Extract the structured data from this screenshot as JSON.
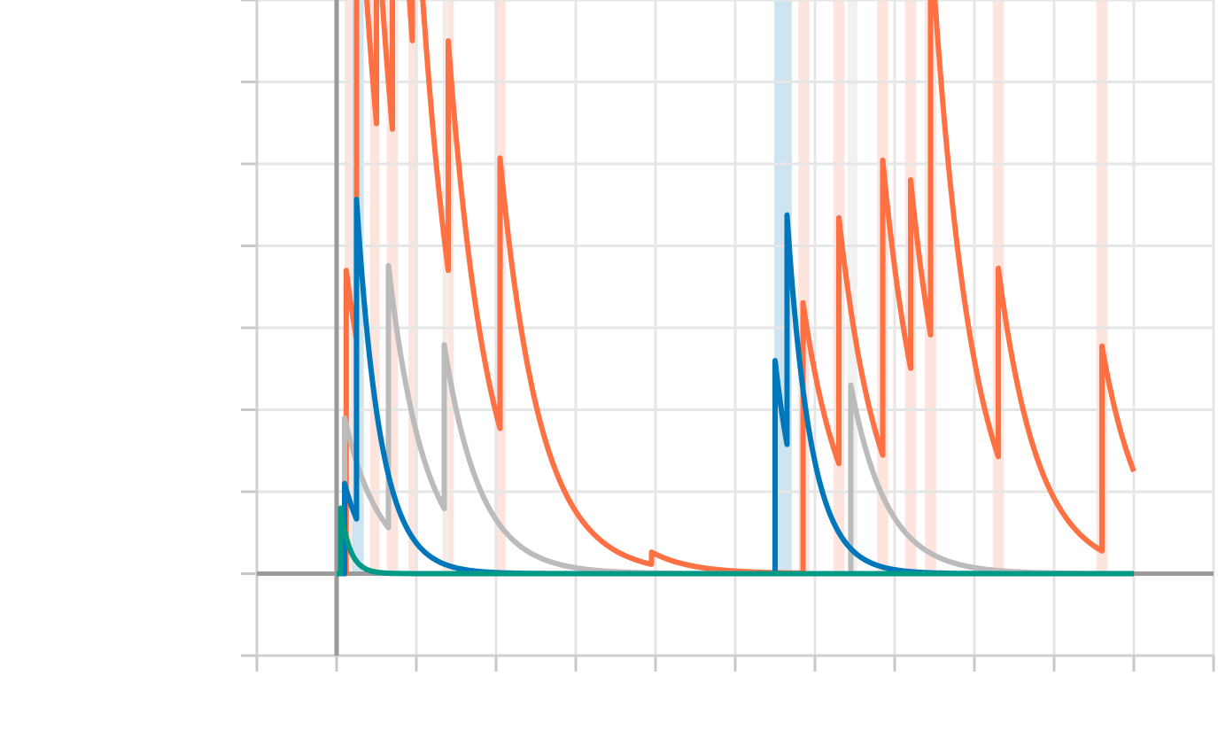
{
  "chart_data": {
    "type": "line",
    "title": "",
    "xlabel": "",
    "ylabel": "",
    "x_ticks": [
      0,
      1,
      2,
      3,
      4,
      5,
      6,
      7,
      8,
      9,
      10,
      11
    ],
    "y_ticks": [
      -1,
      0,
      1,
      2,
      3,
      4,
      5,
      6,
      7
    ],
    "xlim": [
      -1,
      11
    ],
    "ylim": [
      -1,
      7
    ],
    "grid": true,
    "colors": {
      "orange": "#ff7043",
      "orange_band": "#fde0d8",
      "blue": "#0077bb",
      "blue_band": "#c6e0ef",
      "grey": "#bbbbbb",
      "grey_band": "#efefef",
      "teal": "#009988",
      "zero_axis": "#9a9a9a",
      "grid": "#e6e6e6"
    },
    "series": [
      {
        "color": "orange",
        "decay": 0.5,
        "end": 10.0,
        "events": [
          {
            "t": 0.12,
            "a": 3.7
          },
          {
            "t": 0.25,
            "a": 6.2
          },
          {
            "t": 0.5,
            "a": 2.6
          },
          {
            "t": 0.7,
            "a": 5.3
          },
          {
            "t": 0.95,
            "a": 2.6
          },
          {
            "t": 1.4,
            "a": 2.8
          },
          {
            "t": 2.05,
            "a": 3.3
          },
          {
            "t": 3.95,
            "a": 0.15
          },
          {
            "t": 5.85,
            "a": 3.3
          },
          {
            "t": 6.3,
            "a": 3.0
          },
          {
            "t": 6.85,
            "a": 3.6
          },
          {
            "t": 7.2,
            "a": 2.3
          },
          {
            "t": 7.45,
            "a": 4.9
          },
          {
            "t": 8.3,
            "a": 2.3
          },
          {
            "t": 9.6,
            "a": 2.5
          }
        ]
      },
      {
        "color": "grey",
        "decay": 0.45,
        "end": 10.0,
        "events": [
          {
            "t": 0.1,
            "a": 1.9
          },
          {
            "t": 0.65,
            "a": 3.2
          },
          {
            "t": 1.35,
            "a": 2.0
          },
          {
            "t": 6.45,
            "a": 2.3
          }
        ]
      },
      {
        "color": "blue",
        "decay": 0.3,
        "end": 10.0,
        "events": [
          {
            "t": 0.1,
            "a": 1.1
          },
          {
            "t": 0.25,
            "a": 3.9
          },
          {
            "t": 5.5,
            "a": 2.6
          },
          {
            "t": 5.65,
            "a": 2.8
          }
        ]
      },
      {
        "color": "teal",
        "decay": 0.12,
        "end": 10.0,
        "events": [
          {
            "t": 0.05,
            "a": 0.8
          }
        ]
      }
    ],
    "bands": [
      {
        "color": "orange_band",
        "t": 0.16,
        "w": 0.12
      },
      {
        "color": "orange_band",
        "t": 0.48,
        "w": 0.12
      },
      {
        "color": "orange_band",
        "t": 0.7,
        "w": 0.14
      },
      {
        "color": "orange_band",
        "t": 0.96,
        "w": 0.12
      },
      {
        "color": "orange_band",
        "t": 1.4,
        "w": 0.14
      },
      {
        "color": "orange_band",
        "t": 2.05,
        "w": 0.14
      },
      {
        "color": "orange_band",
        "t": 5.86,
        "w": 0.14
      },
      {
        "color": "orange_band",
        "t": 6.3,
        "w": 0.14
      },
      {
        "color": "orange_band",
        "t": 6.85,
        "w": 0.14
      },
      {
        "color": "orange_band",
        "t": 7.2,
        "w": 0.14
      },
      {
        "color": "orange_band",
        "t": 7.45,
        "w": 0.14
      },
      {
        "color": "orange_band",
        "t": 8.3,
        "w": 0.14
      },
      {
        "color": "orange_band",
        "t": 9.6,
        "w": 0.14
      },
      {
        "color": "grey_band",
        "t": 6.47,
        "w": 0.12
      },
      {
        "color": "grey_band",
        "t": 1.38,
        "w": 0.05
      },
      {
        "color": "blue_band",
        "t": 0.27,
        "w": 0.14
      },
      {
        "color": "blue_band",
        "t": 5.6,
        "w": 0.22
      }
    ]
  }
}
